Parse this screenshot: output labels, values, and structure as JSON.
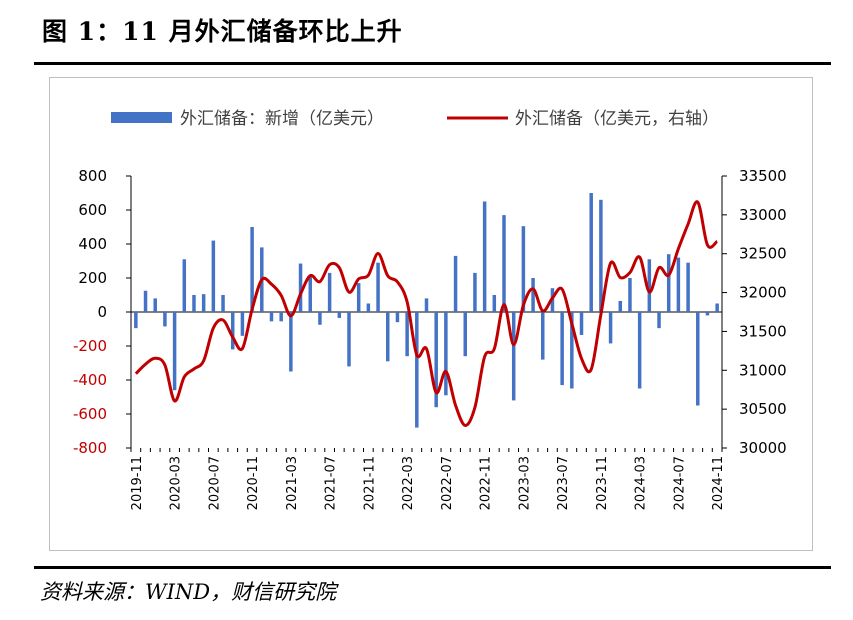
{
  "figure": {
    "title": "图 1：11 月外汇储备环比上升",
    "source": "资料来源：WIND，财信研究院"
  },
  "chart_data": {
    "type": "bar+line",
    "legend_position": "top",
    "grid": false,
    "x": [
      "2019-11",
      "2019-12",
      "2020-01",
      "2020-02",
      "2020-03",
      "2020-04",
      "2020-05",
      "2020-06",
      "2020-07",
      "2020-08",
      "2020-09",
      "2020-10",
      "2020-11",
      "2020-12",
      "2021-01",
      "2021-02",
      "2021-03",
      "2021-04",
      "2021-05",
      "2021-06",
      "2021-07",
      "2021-08",
      "2021-09",
      "2021-10",
      "2021-11",
      "2021-12",
      "2022-01",
      "2022-02",
      "2022-03",
      "2022-04",
      "2022-05",
      "2022-06",
      "2022-07",
      "2022-08",
      "2022-09",
      "2022-10",
      "2022-11",
      "2022-12",
      "2023-01",
      "2023-02",
      "2023-03",
      "2023-04",
      "2023-05",
      "2023-06",
      "2023-07",
      "2023-08",
      "2023-09",
      "2023-10",
      "2023-11",
      "2023-12",
      "2024-01",
      "2024-02",
      "2024-03",
      "2024-04",
      "2024-05",
      "2024-06",
      "2024-07",
      "2024-08",
      "2024-09",
      "2024-10",
      "2024-11"
    ],
    "x_tick_labels": [
      "2019-11",
      "2020-03",
      "2020-07",
      "2020-11",
      "2021-03",
      "2021-07",
      "2021-11",
      "2022-03",
      "2022-07",
      "2022-11",
      "2023-03",
      "2023-07",
      "2023-11",
      "2024-03",
      "2024-07",
      "2024-11"
    ],
    "series": [
      {
        "name": "外汇储备：新增（亿美元）",
        "type": "bar",
        "axis": "left",
        "color": "#4472c4",
        "values": [
          -95,
          125,
          80,
          -85,
          -460,
          310,
          100,
          105,
          420,
          100,
          -220,
          -140,
          500,
          380,
          -55,
          -55,
          -350,
          285,
          210,
          -75,
          230,
          -35,
          -320,
          170,
          50,
          290,
          -290,
          -60,
          -260,
          -680,
          80,
          -560,
          -490,
          330,
          -260,
          230,
          650,
          100,
          570,
          -520,
          505,
          200,
          -280,
          140,
          -430,
          -450,
          -135,
          700,
          660,
          -185,
          65,
          200,
          -450,
          310,
          -95,
          340,
          320,
          290,
          -550,
          -20,
          50
        ]
      },
      {
        "name": "外汇储备（亿美元，右轴）",
        "type": "line",
        "axis": "right",
        "color": "#c00000",
        "values": [
          30956,
          31079,
          31155,
          31067,
          30606,
          30915,
          31017,
          31123,
          31544,
          31646,
          31426,
          31280,
          31785,
          32165,
          32108,
          31964,
          31700,
          31983,
          32218,
          32140,
          32359,
          32321,
          32006,
          32176,
          32224,
          32502,
          32216,
          32138,
          31880,
          31197,
          31278,
          30713,
          30984,
          30549,
          30290,
          30524,
          31175,
          31277,
          31845,
          31330,
          31839,
          32047,
          31765,
          31930,
          32043,
          31601,
          31151,
          31012,
          31718,
          32380,
          32193,
          32258,
          32457,
          32008,
          32320,
          32224,
          32565,
          32882,
          33164,
          32611,
          32659
        ]
      }
    ],
    "y_left": {
      "ticks": [
        800,
        600,
        400,
        200,
        0,
        -200,
        -400,
        -600,
        -800
      ],
      "range": [
        -800,
        800
      ]
    },
    "y_right": {
      "ticks": [
        33500,
        33000,
        32500,
        32000,
        31500,
        31000,
        30500,
        30000
      ],
      "range": [
        30000,
        33500
      ]
    },
    "colors": {
      "bar": "#4472c4",
      "line": "#c00000",
      "negative_tick": "#c00000"
    }
  }
}
